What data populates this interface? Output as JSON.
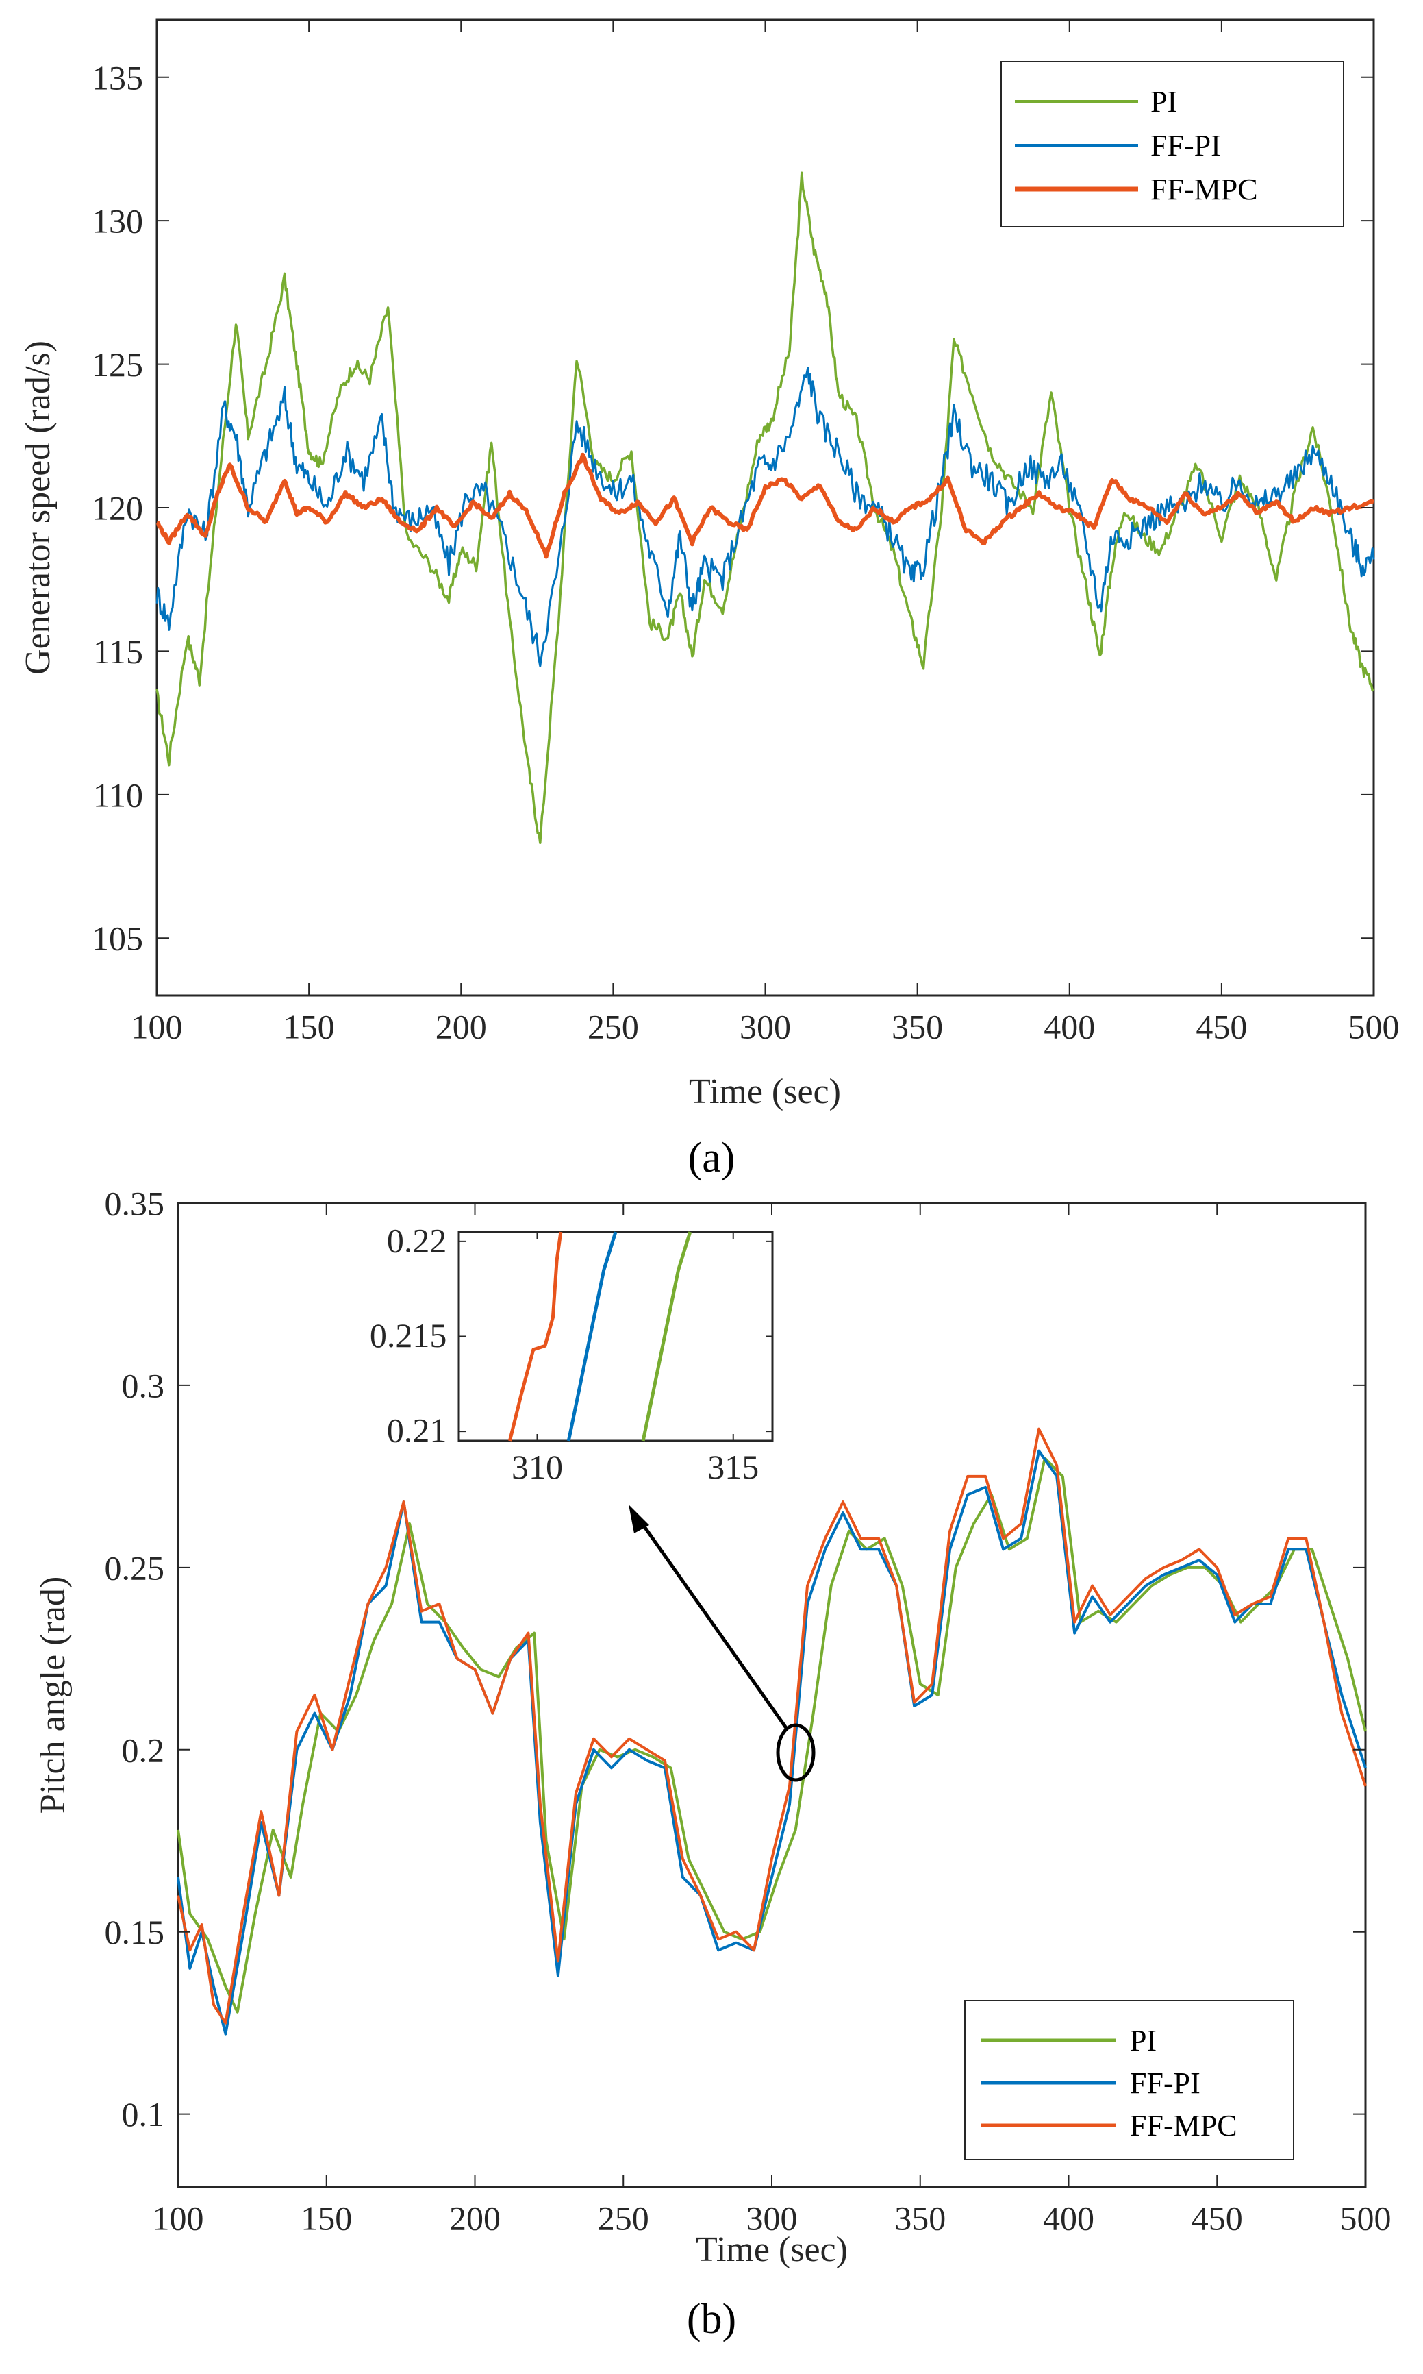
{
  "colors": {
    "PI": "#77ac30",
    "FF-PI": "#0072bd",
    "FF-MPC": "#e8541c",
    "axis": "#262626"
  },
  "chart_data": [
    {
      "type": "line",
      "panel_label": "(a)",
      "xlabel": "Time (sec)",
      "ylabel": "Generator speed (rad/s)",
      "xlim": [
        100,
        500
      ],
      "ylim": [
        103,
        137
      ],
      "xticks": [
        100,
        150,
        200,
        250,
        300,
        350,
        400,
        450,
        500
      ],
      "yticks": [
        105,
        110,
        115,
        120,
        125,
        130,
        135
      ],
      "legend": [
        "PI",
        "FF-PI",
        "FF-MPC"
      ],
      "legend_position": "top-right",
      "series": [
        {
          "name": "PI",
          "x": [
            100,
            104,
            110,
            114,
            120,
            126,
            130,
            136,
            142,
            146,
            150,
            154,
            160,
            165,
            170,
            176,
            182,
            190,
            196,
            200,
            205,
            210,
            216,
            222,
            226,
            232,
            238,
            244,
            250,
            256,
            262,
            268,
            272,
            276,
            280,
            286,
            292,
            298,
            302,
            308,
            312,
            316,
            320,
            324,
            330,
            336,
            342,
            348,
            352,
            358,
            362,
            368,
            374,
            380,
            388,
            394,
            400,
            406,
            410,
            414,
            418,
            424,
            430,
            436,
            442,
            450,
            456,
            462,
            468,
            474,
            480,
            486,
            492,
            496,
            500
          ],
          "values": [
            113.5,
            111.2,
            115.5,
            114.0,
            120.5,
            126.5,
            122.5,
            125.0,
            128.0,
            125.0,
            122.0,
            121.5,
            124.0,
            125.0,
            124.5,
            127.0,
            119.0,
            118.0,
            116.8,
            118.5,
            118.0,
            122.3,
            116.0,
            111.0,
            108.3,
            116.0,
            125.3,
            121.5,
            121.0,
            122.0,
            116.0,
            115.5,
            117.0,
            114.8,
            117.5,
            116.5,
            119.5,
            122.5,
            123.0,
            125.5,
            131.5,
            129.0,
            127.5,
            124.0,
            123.0,
            120.0,
            118.5,
            116.0,
            114.5,
            120.0,
            125.8,
            124.0,
            122.0,
            121.0,
            120.0,
            124.0,
            120.0,
            117.0,
            114.8,
            118.0,
            120.0,
            119.0,
            118.5,
            120.0,
            121.5,
            119.0,
            121.0,
            120.0,
            117.5,
            120.5,
            122.8,
            120.0,
            116.0,
            114.5,
            113.7
          ]
        },
        {
          "name": "FF-PI",
          "x": [
            100,
            104,
            110,
            116,
            122,
            126,
            130,
            136,
            142,
            146,
            150,
            156,
            162,
            168,
            174,
            178,
            184,
            190,
            196,
            202,
            208,
            214,
            220,
            226,
            232,
            238,
            244,
            250,
            256,
            262,
            268,
            272,
            276,
            280,
            286,
            292,
            298,
            302,
            308,
            314,
            318,
            324,
            330,
            336,
            342,
            348,
            352,
            358,
            362,
            368,
            374,
            380,
            386,
            392,
            398,
            404,
            410,
            414,
            420,
            426,
            432,
            438,
            444,
            450,
            456,
            462,
            468,
            474,
            480,
            486,
            492,
            496,
            500
          ],
          "values": [
            117.0,
            116.0,
            120.0,
            119.0,
            123.5,
            122.5,
            120.0,
            122.0,
            123.8,
            121.5,
            121.0,
            120.0,
            122.0,
            121.0,
            123.0,
            120.0,
            119.5,
            120.0,
            118.0,
            120.5,
            120.5,
            119.0,
            117.0,
            114.8,
            118.0,
            123.0,
            121.5,
            120.5,
            121.0,
            118.5,
            116.5,
            119.0,
            116.5,
            118.0,
            117.5,
            119.5,
            121.5,
            121.5,
            122.5,
            124.8,
            123.0,
            122.0,
            120.5,
            120.0,
            119.0,
            117.5,
            118.0,
            121.0,
            123.2,
            121.5,
            121.0,
            120.0,
            121.5,
            121.0,
            121.5,
            119.5,
            116.5,
            119.0,
            119.0,
            119.5,
            120.0,
            120.0,
            121.0,
            120.0,
            121.0,
            120.0,
            120.5,
            121.0,
            122.0,
            121.0,
            119.0,
            118.0,
            118.2
          ]
        },
        {
          "name": "FF-MPC",
          "x": [
            100,
            104,
            110,
            116,
            120,
            124,
            130,
            136,
            142,
            146,
            150,
            156,
            162,
            168,
            174,
            180,
            186,
            192,
            198,
            204,
            210,
            216,
            222,
            228,
            234,
            240,
            246,
            252,
            258,
            264,
            270,
            276,
            282,
            288,
            294,
            300,
            306,
            312,
            318,
            324,
            330,
            336,
            342,
            348,
            354,
            360,
            366,
            372,
            378,
            384,
            390,
            396,
            402,
            408,
            414,
            420,
            426,
            432,
            438,
            444,
            450,
            456,
            462,
            468,
            474,
            480,
            486,
            492,
            500
          ],
          "values": [
            119.5,
            118.8,
            119.8,
            119.0,
            120.5,
            121.5,
            120.0,
            119.5,
            121.0,
            119.8,
            120.0,
            119.5,
            120.5,
            120.0,
            120.3,
            119.5,
            119.2,
            120.0,
            119.3,
            120.2,
            119.6,
            120.5,
            119.8,
            118.3,
            120.5,
            121.8,
            120.3,
            119.8,
            120.2,
            119.5,
            120.3,
            118.8,
            120.0,
            119.5,
            119.2,
            120.7,
            121.0,
            120.3,
            120.8,
            119.5,
            119.2,
            120.0,
            119.5,
            120.0,
            120.3,
            121.0,
            119.2,
            118.8,
            119.5,
            120.0,
            120.5,
            120.0,
            119.8,
            119.3,
            121.0,
            120.3,
            120.0,
            119.5,
            120.5,
            119.8,
            120.0,
            120.5,
            119.8,
            120.2,
            119.5,
            120.0,
            119.8,
            120.0,
            120.2
          ]
        }
      ]
    },
    {
      "type": "line",
      "panel_label": "(b)",
      "xlabel": "Time (sec)",
      "ylabel": "Pitch angle (rad)",
      "xlim": [
        100,
        500
      ],
      "ylim": [
        0.08,
        0.35
      ],
      "xticks": [
        100,
        150,
        200,
        250,
        300,
        350,
        400,
        450,
        500
      ],
      "yticks": [
        0.1,
        0.15,
        0.2,
        0.25,
        0.3,
        0.35
      ],
      "ytick_labels": [
        "0.1",
        "0.15",
        "0.2",
        "0.25",
        "0.3",
        "0.35"
      ],
      "legend": [
        "PI",
        "FF-PI",
        "FF-MPC"
      ],
      "legend_position": "bottom-right",
      "annotation": "inset zoom around t = 310 s",
      "series": [
        {
          "name": "PI",
          "x": [
            100,
            104,
            110,
            116,
            120,
            126,
            132,
            138,
            142,
            148,
            154,
            160,
            166,
            172,
            178,
            184,
            190,
            196,
            202,
            208,
            214,
            220,
            224,
            230,
            236,
            242,
            248,
            254,
            260,
            266,
            272,
            278,
            284,
            290,
            296,
            302,
            308,
            314,
            320,
            326,
            332,
            338,
            344,
            350,
            356,
            362,
            368,
            374,
            380,
            386,
            392,
            398,
            404,
            410,
            416,
            422,
            428,
            434,
            440,
            446,
            452,
            458,
            464,
            470,
            476,
            482,
            488,
            494,
            500
          ],
          "values": [
            0.178,
            0.155,
            0.148,
            0.135,
            0.128,
            0.155,
            0.178,
            0.165,
            0.185,
            0.21,
            0.205,
            0.215,
            0.23,
            0.24,
            0.262,
            0.24,
            0.235,
            0.228,
            0.222,
            0.22,
            0.228,
            0.232,
            0.175,
            0.148,
            0.19,
            0.2,
            0.198,
            0.2,
            0.198,
            0.195,
            0.17,
            0.16,
            0.15,
            0.148,
            0.15,
            0.165,
            0.178,
            0.21,
            0.245,
            0.26,
            0.255,
            0.258,
            0.245,
            0.218,
            0.215,
            0.25,
            0.262,
            0.27,
            0.255,
            0.258,
            0.28,
            0.275,
            0.235,
            0.238,
            0.235,
            0.24,
            0.245,
            0.248,
            0.25,
            0.25,
            0.245,
            0.235,
            0.24,
            0.245,
            0.255,
            0.255,
            0.24,
            0.225,
            0.205
          ]
        },
        {
          "name": "FF-PI",
          "x": [
            100,
            104,
            108,
            112,
            116,
            122,
            128,
            134,
            140,
            146,
            152,
            158,
            164,
            170,
            176,
            182,
            188,
            194,
            200,
            206,
            212,
            218,
            222,
            228,
            234,
            240,
            246,
            252,
            258,
            264,
            270,
            276,
            282,
            288,
            294,
            300,
            306,
            312,
            318,
            324,
            330,
            336,
            342,
            348,
            354,
            360,
            366,
            372,
            378,
            384,
            390,
            396,
            402,
            408,
            414,
            420,
            426,
            432,
            438,
            444,
            450,
            456,
            462,
            468,
            474,
            480,
            486,
            492,
            500
          ],
          "values": [
            0.165,
            0.14,
            0.15,
            0.135,
            0.122,
            0.15,
            0.18,
            0.16,
            0.2,
            0.21,
            0.2,
            0.215,
            0.24,
            0.245,
            0.268,
            0.235,
            0.235,
            0.225,
            0.222,
            0.21,
            0.225,
            0.23,
            0.18,
            0.138,
            0.185,
            0.2,
            0.195,
            0.2,
            0.197,
            0.195,
            0.165,
            0.16,
            0.145,
            0.147,
            0.145,
            0.165,
            0.185,
            0.24,
            0.255,
            0.265,
            0.255,
            0.255,
            0.245,
            0.212,
            0.215,
            0.255,
            0.27,
            0.272,
            0.255,
            0.258,
            0.282,
            0.275,
            0.232,
            0.242,
            0.235,
            0.24,
            0.245,
            0.248,
            0.25,
            0.252,
            0.248,
            0.235,
            0.24,
            0.24,
            0.255,
            0.255,
            0.235,
            0.215,
            0.195
          ]
        },
        {
          "name": "FF-MPC",
          "x": [
            100,
            104,
            108,
            112,
            116,
            122,
            128,
            134,
            140,
            146,
            152,
            158,
            164,
            170,
            176,
            182,
            188,
            194,
            200,
            206,
            212,
            218,
            222,
            228,
            234,
            240,
            246,
            252,
            258,
            264,
            270,
            276,
            282,
            288,
            294,
            300,
            306,
            312,
            318,
            324,
            330,
            336,
            342,
            348,
            354,
            360,
            366,
            372,
            378,
            384,
            390,
            396,
            402,
            408,
            414,
            420,
            426,
            432,
            438,
            444,
            450,
            456,
            462,
            468,
            474,
            480,
            486,
            492,
            500
          ],
          "values": [
            0.16,
            0.145,
            0.152,
            0.13,
            0.125,
            0.155,
            0.183,
            0.16,
            0.205,
            0.215,
            0.2,
            0.22,
            0.24,
            0.25,
            0.268,
            0.238,
            0.24,
            0.225,
            0.222,
            0.21,
            0.225,
            0.232,
            0.185,
            0.142,
            0.188,
            0.203,
            0.198,
            0.203,
            0.2,
            0.197,
            0.17,
            0.16,
            0.148,
            0.15,
            0.145,
            0.17,
            0.19,
            0.245,
            0.258,
            0.268,
            0.258,
            0.258,
            0.245,
            0.213,
            0.218,
            0.26,
            0.275,
            0.275,
            0.258,
            0.262,
            0.288,
            0.278,
            0.235,
            0.245,
            0.237,
            0.242,
            0.247,
            0.25,
            0.252,
            0.255,
            0.25,
            0.237,
            0.24,
            0.242,
            0.258,
            0.258,
            0.235,
            0.21,
            0.19
          ]
        }
      ],
      "inset": {
        "xlim": [
          308,
          316
        ],
        "ylim": [
          0.2095,
          0.2205
        ],
        "xticks": [
          310,
          315
        ],
        "yticks": [
          0.21,
          0.215,
          0.22
        ],
        "ytick_labels": [
          "0.21",
          "0.215",
          "0.22"
        ],
        "series": [
          {
            "name": "PI",
            "x": [
              312.7,
              313.0,
              313.3,
              313.6,
              313.9
            ],
            "values": [
              0.2095,
              0.2125,
              0.2155,
              0.2185,
              0.2205
            ]
          },
          {
            "name": "FF-PI",
            "x": [
              310.8,
              311.1,
              311.4,
              311.7,
              312.0
            ],
            "values": [
              0.2095,
              0.2125,
              0.2155,
              0.2185,
              0.2205
            ]
          },
          {
            "name": "FF-MPC",
            "x": [
              309.3,
              309.6,
              309.9,
              310.2,
              310.4,
              310.5,
              310.6
            ],
            "values": [
              0.2095,
              0.212,
              0.2143,
              0.2145,
              0.216,
              0.219,
              0.2205
            ]
          }
        ]
      }
    }
  ]
}
